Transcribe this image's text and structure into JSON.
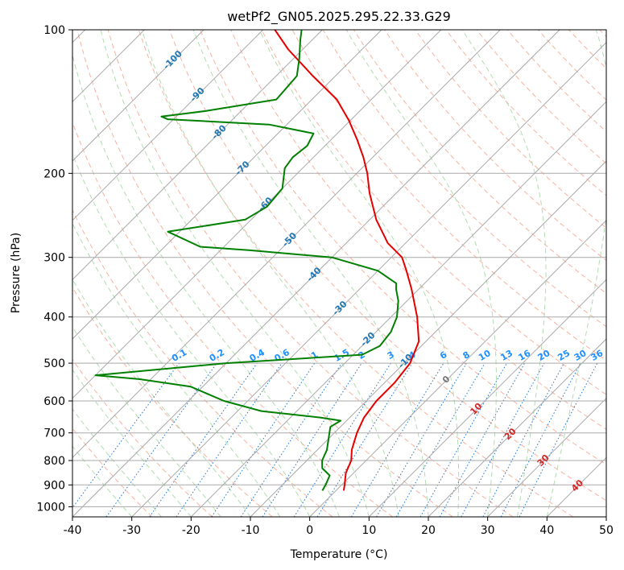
{
  "chart_data": {
    "type": "line",
    "title": "wetPf2_GN05.2025.295.22.33.G29",
    "xlabel": "Temperature (°C)",
    "ylabel": "Pressure (hPa)",
    "xlim": [
      -40,
      50
    ],
    "ylim": [
      1050,
      100
    ],
    "y_scale": "log",
    "skew": "skew-T",
    "grid": true,
    "x_ticks": [
      -40,
      -30,
      -20,
      -10,
      0,
      10,
      20,
      30,
      40,
      50
    ],
    "y_ticks": [
      100,
      200,
      300,
      400,
      500,
      600,
      700,
      800,
      900,
      1000
    ],
    "colors": {
      "temperature": "#e60000",
      "dewpoint": "#008000",
      "isotherm": "#a9a9a9",
      "dry_adiabat": "#f7a58e",
      "moist_adiabat": "#a8d8a8",
      "mixing_ratio": "#1f77d4",
      "isotherm_label": "#1f77b4",
      "mixing_label": "#1e90ff",
      "warm_label": "#d62728"
    },
    "isotherm_labels": [
      {
        "t": -100,
        "p": 115
      },
      {
        "t": -90,
        "p": 136
      },
      {
        "t": -80,
        "p": 163
      },
      {
        "t": -70,
        "p": 194
      },
      {
        "t": -60,
        "p": 231
      },
      {
        "t": -50,
        "p": 274
      },
      {
        "t": -40,
        "p": 324
      },
      {
        "t": -30,
        "p": 381
      },
      {
        "t": -20,
        "p": 443
      },
      {
        "t": -10,
        "p": 492
      },
      {
        "t": 0,
        "p": 538
      },
      {
        "t": 10,
        "p": 620
      },
      {
        "t": 20,
        "p": 700
      },
      {
        "t": 30,
        "p": 795
      },
      {
        "t": 40,
        "p": 898
      }
    ],
    "mixing_ratio_labels": [
      "0.1",
      "0.2",
      "0.4",
      "0.6",
      "1",
      "1.5",
      "2",
      "3",
      "4",
      "6",
      "8",
      "10",
      "13",
      "16",
      "20",
      "25",
      "30",
      "36"
    ],
    "mixing_ratio_label_p": 495,
    "series": [
      {
        "name": "",
        "role": "temperature",
        "points": [
          {
            "p": 925,
            "t": 1.3
          },
          {
            "p": 900,
            "t": 0.5
          },
          {
            "p": 850,
            "t": -1.3
          },
          {
            "p": 800,
            "t": -2.5
          },
          {
            "p": 760,
            "t": -4.2
          },
          {
            "p": 700,
            "t": -6.2
          },
          {
            "p": 650,
            "t": -7.6
          },
          {
            "p": 600,
            "t": -8.3
          },
          {
            "p": 550,
            "t": -8.3
          },
          {
            "p": 500,
            "t": -9.0
          },
          {
            "p": 450,
            "t": -11.2
          },
          {
            "p": 400,
            "t": -15.6
          },
          {
            "p": 350,
            "t": -21.2
          },
          {
            "p": 320,
            "t": -25.2
          },
          {
            "p": 300,
            "t": -28.2
          },
          {
            "p": 280,
            "t": -33.0
          },
          {
            "p": 250,
            "t": -38.9
          },
          {
            "p": 220,
            "t": -44.5
          },
          {
            "p": 200,
            "t": -48.2
          },
          {
            "p": 185,
            "t": -51.6
          },
          {
            "p": 170,
            "t": -55.6
          },
          {
            "p": 155,
            "t": -60.2
          },
          {
            "p": 140,
            "t": -65.8
          },
          {
            "p": 125,
            "t": -73.8
          },
          {
            "p": 110,
            "t": -82.4
          },
          {
            "p": 100,
            "t": -88.0
          }
        ]
      },
      {
        "name": "",
        "role": "dewpoint",
        "points": [
          {
            "p": 925,
            "t": -2.3
          },
          {
            "p": 900,
            "t": -2.7
          },
          {
            "p": 860,
            "t": -3.6
          },
          {
            "p": 830,
            "t": -6.1
          },
          {
            "p": 800,
            "t": -7.4
          },
          {
            "p": 760,
            "t": -8.4
          },
          {
            "p": 720,
            "t": -10.0
          },
          {
            "p": 680,
            "t": -11.7
          },
          {
            "p": 660,
            "t": -11.0
          },
          {
            "p": 650,
            "t": -15.0
          },
          {
            "p": 630,
            "t": -26.0
          },
          {
            "p": 600,
            "t": -34.0
          },
          {
            "p": 560,
            "t": -42.0
          },
          {
            "p": 540,
            "t": -52.0
          },
          {
            "p": 530,
            "t": -60.0
          },
          {
            "p": 500,
            "t": -40.0
          },
          {
            "p": 480,
            "t": -18.5
          },
          {
            "p": 460,
            "t": -17.0
          },
          {
            "p": 430,
            "t": -17.5
          },
          {
            "p": 400,
            "t": -19.0
          },
          {
            "p": 370,
            "t": -21.5
          },
          {
            "p": 350,
            "t": -23.8
          },
          {
            "p": 340,
            "t": -24.8
          },
          {
            "p": 320,
            "t": -30.0
          },
          {
            "p": 300,
            "t": -40.0
          },
          {
            "p": 290,
            "t": -55.0
          },
          {
            "p": 285,
            "t": -64.0
          },
          {
            "p": 265,
            "t": -72.0
          },
          {
            "p": 250,
            "t": -61.0
          },
          {
            "p": 235,
            "t": -59.5
          },
          {
            "p": 215,
            "t": -60.0
          },
          {
            "p": 195,
            "t": -63.0
          },
          {
            "p": 185,
            "t": -63.5
          },
          {
            "p": 175,
            "t": -63.0
          },
          {
            "p": 165,
            "t": -64.0
          },
          {
            "p": 158,
            "t": -73.0
          },
          {
            "p": 154,
            "t": -91.0
          },
          {
            "p": 152,
            "t": -92.5
          },
          {
            "p": 148,
            "t": -86.0
          },
          {
            "p": 140,
            "t": -76.0
          },
          {
            "p": 125,
            "t": -76.5
          },
          {
            "p": 115,
            "t": -79.0
          },
          {
            "p": 105,
            "t": -82.0
          },
          {
            "p": 100,
            "t": -83.5
          }
        ]
      }
    ]
  }
}
